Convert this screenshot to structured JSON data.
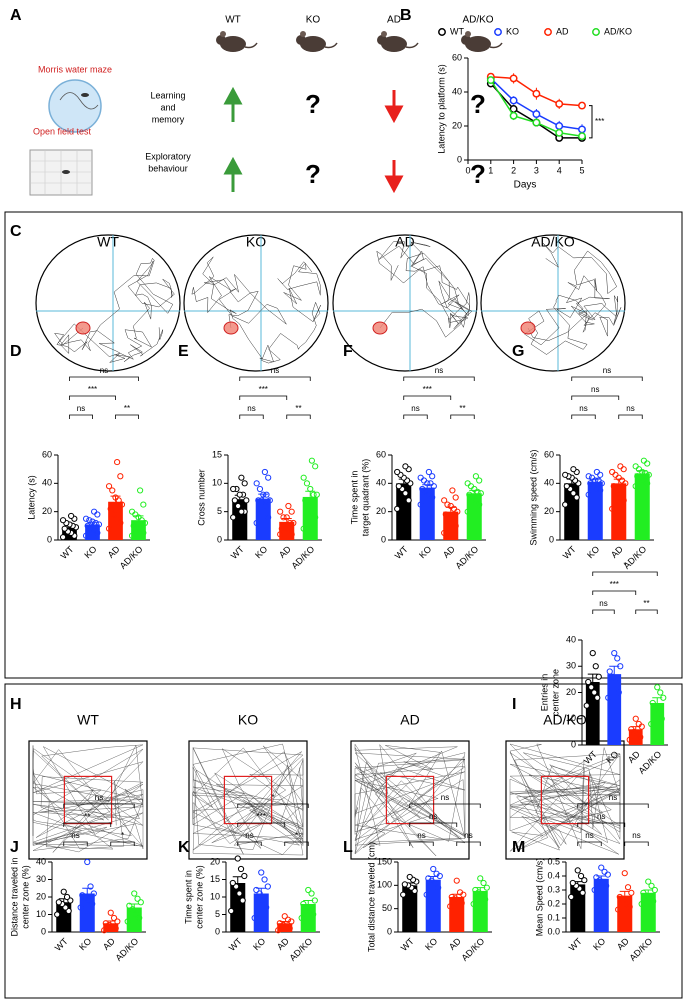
{
  "figure": {
    "panel_A": {
      "letter": "A",
      "groups": [
        "WT",
        "KO",
        "AD",
        "AD/KO"
      ],
      "tests": [
        {
          "name": "Morris water maze",
          "label": [
            "Learning",
            "and",
            "memory"
          ]
        },
        {
          "name": "Open field test",
          "label": [
            "Exploratory",
            "behaviour"
          ]
        }
      ],
      "question_mark": "?"
    },
    "panel_C": {
      "letter": "C",
      "tracks": [
        "WT",
        "KO",
        "AD",
        "AD/KO"
      ]
    },
    "panel_H": {
      "letter": "H",
      "tracks": [
        "WT",
        "KO",
        "AD",
        "AD/KO"
      ]
    }
  },
  "chart_data": [
    {
      "type": "line",
      "panel": "B",
      "ylabel": [
        "Latency to platform (s)"
      ],
      "xlabel": "Days",
      "x": [
        1,
        2,
        3,
        4,
        5
      ],
      "xlim": [
        0,
        5
      ],
      "xticks": [
        0,
        1,
        2,
        3,
        4,
        5
      ],
      "ylim": [
        0,
        60
      ],
      "yticks": [
        0,
        20,
        40,
        60
      ],
      "series": [
        {
          "name": "WT",
          "color": "#000000",
          "values": [
            45,
            30,
            22,
            13,
            13
          ],
          "errors": [
            2,
            2,
            2,
            1.5,
            1.5
          ]
        },
        {
          "name": "KO",
          "color": "#1a3cff",
          "values": [
            48,
            35,
            27,
            20,
            18
          ],
          "errors": [
            2,
            2.5,
            3,
            3,
            3
          ]
        },
        {
          "name": "AD",
          "color": "#ff2200",
          "values": [
            49,
            48,
            39,
            33,
            32
          ],
          "errors": [
            2,
            3,
            3.5,
            3,
            2
          ]
        },
        {
          "name": "AD/KO",
          "color": "#22dd22",
          "values": [
            47,
            26,
            22,
            16,
            14
          ],
          "errors": [
            2,
            2.5,
            2,
            2,
            2
          ]
        }
      ],
      "annotation": "***",
      "legend": "top"
    },
    {
      "type": "bar",
      "panel": "D",
      "ylabel": [
        "Latency (s)"
      ],
      "categories": [
        "WT",
        "KO",
        "AD",
        "AD/KO"
      ],
      "colors": [
        "#000000",
        "#1a3cff",
        "#ff2200",
        "#22ee22"
      ],
      "ylim": [
        0,
        60
      ],
      "yticks": [
        0,
        20,
        40,
        60
      ],
      "values": [
        9,
        11,
        27,
        14
      ],
      "errors": [
        1.5,
        1.5,
        4,
        3
      ],
      "points": [
        [
          2,
          3,
          5,
          6,
          8,
          9,
          10,
          11,
          12,
          14,
          15,
          17
        ],
        [
          3,
          5,
          7,
          8,
          10,
          11,
          12,
          13,
          14,
          15,
          18,
          20
        ],
        [
          8,
          12,
          15,
          18,
          22,
          25,
          28,
          30,
          35,
          38,
          45,
          55
        ],
        [
          3,
          5,
          6,
          8,
          10,
          12,
          14,
          16,
          18,
          20,
          25,
          35
        ]
      ],
      "brackets": [
        {
          "pair": [
            0,
            1
          ],
          "label": "ns"
        },
        {
          "pair": [
            2,
            3
          ],
          "label": "**"
        },
        {
          "pair": [
            0,
            2
          ],
          "label": "***"
        },
        {
          "pair": [
            0,
            3
          ],
          "label": "ns"
        }
      ]
    },
    {
      "type": "bar",
      "panel": "E",
      "ylabel": [
        "Cross number"
      ],
      "categories": [
        "WT",
        "KO",
        "AD",
        "AD/KO"
      ],
      "colors": [
        "#000000",
        "#1a3cff",
        "#ff2200",
        "#22ee22"
      ],
      "ylim": [
        0,
        15
      ],
      "yticks": [
        0,
        5,
        10,
        15
      ],
      "values": [
        7.2,
        7.3,
        3.2,
        7.6
      ],
      "errors": [
        0.7,
        0.8,
        0.6,
        1
      ],
      "points": [
        [
          4,
          5,
          5,
          6,
          7,
          7,
          8,
          8,
          9,
          9,
          10,
          11
        ],
        [
          3,
          4,
          6,
          7,
          7,
          7,
          8,
          8,
          9,
          10,
          11,
          12
        ],
        [
          1,
          1,
          2,
          2,
          2,
          3,
          3,
          4,
          4,
          5,
          5,
          6
        ],
        [
          2,
          4,
          5,
          6,
          7,
          8,
          8,
          9,
          10,
          11,
          13,
          14
        ]
      ],
      "brackets": [
        {
          "pair": [
            0,
            1
          ],
          "label": "ns"
        },
        {
          "pair": [
            2,
            3
          ],
          "label": "**"
        },
        {
          "pair": [
            0,
            2
          ],
          "label": "***"
        },
        {
          "pair": [
            0,
            3
          ],
          "label": "ns"
        }
      ]
    },
    {
      "type": "bar",
      "panel": "F",
      "ylabel": [
        "Time spent in",
        "target quadrant (%)"
      ],
      "categories": [
        "WT",
        "KO",
        "AD",
        "AD/KO"
      ],
      "colors": [
        "#000000",
        "#1a3cff",
        "#ff2200",
        "#22ee22"
      ],
      "ylim": [
        0,
        60
      ],
      "yticks": [
        0,
        20,
        40,
        60
      ],
      "values": [
        40,
        37,
        20,
        33
      ],
      "errors": [
        3,
        2,
        3,
        2
      ],
      "points": [
        [
          22,
          28,
          33,
          36,
          38,
          40,
          42,
          44,
          46,
          48,
          50,
          52
        ],
        [
          25,
          30,
          32,
          34,
          36,
          38,
          40,
          40,
          42,
          44,
          45,
          48
        ],
        [
          5,
          10,
          12,
          15,
          18,
          20,
          22,
          24,
          25,
          28,
          30,
          35
        ],
        [
          20,
          25,
          28,
          30,
          32,
          33,
          34,
          36,
          38,
          40,
          42,
          45
        ]
      ],
      "brackets": [
        {
          "pair": [
            0,
            1
          ],
          "label": "ns"
        },
        {
          "pair": [
            2,
            3
          ],
          "label": "**"
        },
        {
          "pair": [
            0,
            2
          ],
          "label": "***"
        },
        {
          "pair": [
            0,
            3
          ],
          "label": "ns"
        }
      ]
    },
    {
      "type": "bar",
      "panel": "G",
      "ylabel": [
        "Swimming speed (cm/s)"
      ],
      "categories": [
        "WT",
        "KO",
        "AD",
        "AD/KO"
      ],
      "colors": [
        "#000000",
        "#1a3cff",
        "#ff2200",
        "#22ee22"
      ],
      "ylim": [
        0,
        60
      ],
      "yticks": [
        0,
        20,
        40,
        60
      ],
      "values": [
        40,
        41,
        40,
        47
      ],
      "errors": [
        3,
        2,
        3,
        2
      ],
      "points": [
        [
          25,
          30,
          33,
          36,
          38,
          40,
          42,
          44,
          45,
          46,
          48,
          50
        ],
        [
          32,
          35,
          36,
          38,
          40,
          40,
          42,
          42,
          44,
          45,
          46,
          48
        ],
        [
          22,
          28,
          30,
          35,
          38,
          40,
          42,
          44,
          46,
          48,
          50,
          52
        ],
        [
          38,
          40,
          42,
          44,
          45,
          46,
          47,
          48,
          50,
          52,
          54,
          56
        ]
      ],
      "brackets": [
        {
          "pair": [
            0,
            1
          ],
          "label": "ns"
        },
        {
          "pair": [
            2,
            3
          ],
          "label": "ns"
        },
        {
          "pair": [
            0,
            2
          ],
          "label": "ns"
        },
        {
          "pair": [
            0,
            3
          ],
          "label": "ns"
        }
      ]
    },
    {
      "type": "bar",
      "panel": "I",
      "ylabel": [
        "Entries in",
        "center zone"
      ],
      "categories": [
        "WT",
        "KO",
        "AD",
        "AD/KO"
      ],
      "colors": [
        "#000000",
        "#1a3cff",
        "#ff2200",
        "#22ee22"
      ],
      "ylim": [
        0,
        40
      ],
      "yticks": [
        0,
        10,
        20,
        30,
        40
      ],
      "values": [
        24,
        27,
        6,
        16
      ],
      "errors": [
        3,
        3,
        1,
        2
      ],
      "points": [
        [
          15,
          18,
          20,
          22,
          24,
          26,
          30,
          35
        ],
        [
          18,
          20,
          24,
          26,
          28,
          30,
          33,
          35
        ],
        [
          2,
          3,
          4,
          5,
          6,
          7,
          8,
          10
        ],
        [
          8,
          10,
          12,
          14,
          16,
          18,
          20,
          22
        ]
      ],
      "brackets": [
        {
          "pair": [
            0,
            1
          ],
          "label": "ns"
        },
        {
          "pair": [
            2,
            3
          ],
          "label": "**"
        },
        {
          "pair": [
            0,
            2
          ],
          "label": "***"
        },
        {
          "pair": [
            0,
            3
          ],
          "label": "*"
        }
      ]
    },
    {
      "type": "bar",
      "panel": "J",
      "ylabel": [
        "Distance traveled in",
        "center zone (%)"
      ],
      "categories": [
        "WT",
        "KO",
        "AD",
        "AD/KO"
      ],
      "colors": [
        "#000000",
        "#1a3cff",
        "#ff2200",
        "#22ee22"
      ],
      "ylim": [
        0,
        40
      ],
      "yticks": [
        0,
        10,
        20,
        30,
        40
      ],
      "values": [
        17,
        22,
        5,
        14
      ],
      "errors": [
        2,
        3,
        1.3,
        2
      ],
      "points": [
        [
          10,
          12,
          14,
          16,
          17,
          18,
          20,
          23
        ],
        [
          14,
          16,
          18,
          20,
          21,
          22,
          26,
          40
        ],
        [
          1,
          2,
          3,
          4,
          5,
          6,
          8,
          11
        ],
        [
          6,
          8,
          10,
          13,
          15,
          17,
          19,
          22
        ]
      ],
      "brackets": [
        {
          "pair": [
            0,
            1
          ],
          "label": "ns"
        },
        {
          "pair": [
            2,
            3
          ],
          "label": "*"
        },
        {
          "pair": [
            0,
            2
          ],
          "label": "**"
        },
        {
          "pair": [
            0,
            3
          ],
          "label": "ns"
        }
      ]
    },
    {
      "type": "bar",
      "panel": "K",
      "ylabel": [
        "Time spent in",
        "center zone (%)"
      ],
      "categories": [
        "WT",
        "KO",
        "AD",
        "AD/KO"
      ],
      "colors": [
        "#000000",
        "#1a3cff",
        "#ff2200",
        "#22ee22"
      ],
      "ylim": [
        0,
        20
      ],
      "yticks": [
        0,
        5,
        10,
        15,
        20
      ],
      "values": [
        14,
        11,
        2.5,
        8
      ],
      "errors": [
        1.8,
        1.5,
        0.5,
        1
      ],
      "points": [
        [
          6,
          9,
          11,
          13,
          14,
          16,
          18,
          21
        ],
        [
          4,
          7,
          9,
          11,
          12,
          13,
          15,
          17
        ],
        [
          0.5,
          1,
          1.5,
          2,
          2.5,
          3,
          3.5,
          4.5
        ],
        [
          4,
          5,
          6,
          7,
          8,
          9,
          11,
          12
        ]
      ],
      "brackets": [
        {
          "pair": [
            0,
            1
          ],
          "label": "ns"
        },
        {
          "pair": [
            2,
            3
          ],
          "label": "*"
        },
        {
          "pair": [
            0,
            2
          ],
          "label": "***"
        },
        {
          "pair": [
            0,
            3
          ],
          "label": "*"
        }
      ]
    },
    {
      "type": "bar",
      "panel": "L",
      "ylabel": [
        "Total distance traveled (cm)"
      ],
      "categories": [
        "WT",
        "KO",
        "AD",
        "AD/KO"
      ],
      "colors": [
        "#000000",
        "#1a3cff",
        "#ff2200",
        "#22ee22"
      ],
      "ylim": [
        0,
        150
      ],
      "yticks": [
        0,
        50,
        100,
        150
      ],
      "values": [
        100,
        112,
        75,
        88
      ],
      "errors": [
        5,
        7,
        6,
        7
      ],
      "points": [
        [
          80,
          88,
          95,
          100,
          102,
          108,
          112,
          118
        ],
        [
          80,
          95,
          105,
          110,
          115,
          120,
          125,
          135
        ],
        [
          55,
          62,
          68,
          72,
          75,
          80,
          85,
          110
        ],
        [
          60,
          70,
          78,
          85,
          90,
          95,
          105,
          115
        ]
      ],
      "brackets": [
        {
          "pair": [
            0,
            1
          ],
          "label": "ns"
        },
        {
          "pair": [
            2,
            3
          ],
          "label": "ns"
        },
        {
          "pair": [
            0,
            2
          ],
          "label": "ns"
        },
        {
          "pair": [
            0,
            3
          ],
          "label": "ns"
        }
      ]
    },
    {
      "type": "bar",
      "panel": "M",
      "ylabel": [
        "Mean Speed (cm/s)"
      ],
      "categories": [
        "WT",
        "KO",
        "AD",
        "AD/KO"
      ],
      "colors": [
        "#000000",
        "#1a3cff",
        "#ff2200",
        "#22ee22"
      ],
      "ylim": [
        0,
        0.5
      ],
      "yticks": [
        {
          "value": 0,
          "label": "0.0"
        },
        0.1,
        0.2,
        0.3,
        0.4,
        0.5
      ],
      "values": [
        0.34,
        0.38,
        0.26,
        0.28
      ],
      "errors": [
        0.02,
        0.02,
        0.03,
        0.02
      ],
      "points": [
        [
          0.25,
          0.28,
          0.31,
          0.33,
          0.35,
          0.37,
          0.4,
          0.44
        ],
        [
          0.3,
          0.33,
          0.35,
          0.37,
          0.39,
          0.41,
          0.43,
          0.46
        ],
        [
          0.16,
          0.18,
          0.2,
          0.23,
          0.25,
          0.28,
          0.32,
          0.42
        ],
        [
          0.2,
          0.22,
          0.24,
          0.26,
          0.28,
          0.3,
          0.33,
          0.36
        ]
      ],
      "brackets": [
        {
          "pair": [
            0,
            1
          ],
          "label": "ns"
        },
        {
          "pair": [
            2,
            3
          ],
          "label": "ns"
        },
        {
          "pair": [
            0,
            2
          ],
          "label": "ns"
        },
        {
          "pair": [
            0,
            3
          ],
          "label": "ns"
        }
      ]
    }
  ]
}
